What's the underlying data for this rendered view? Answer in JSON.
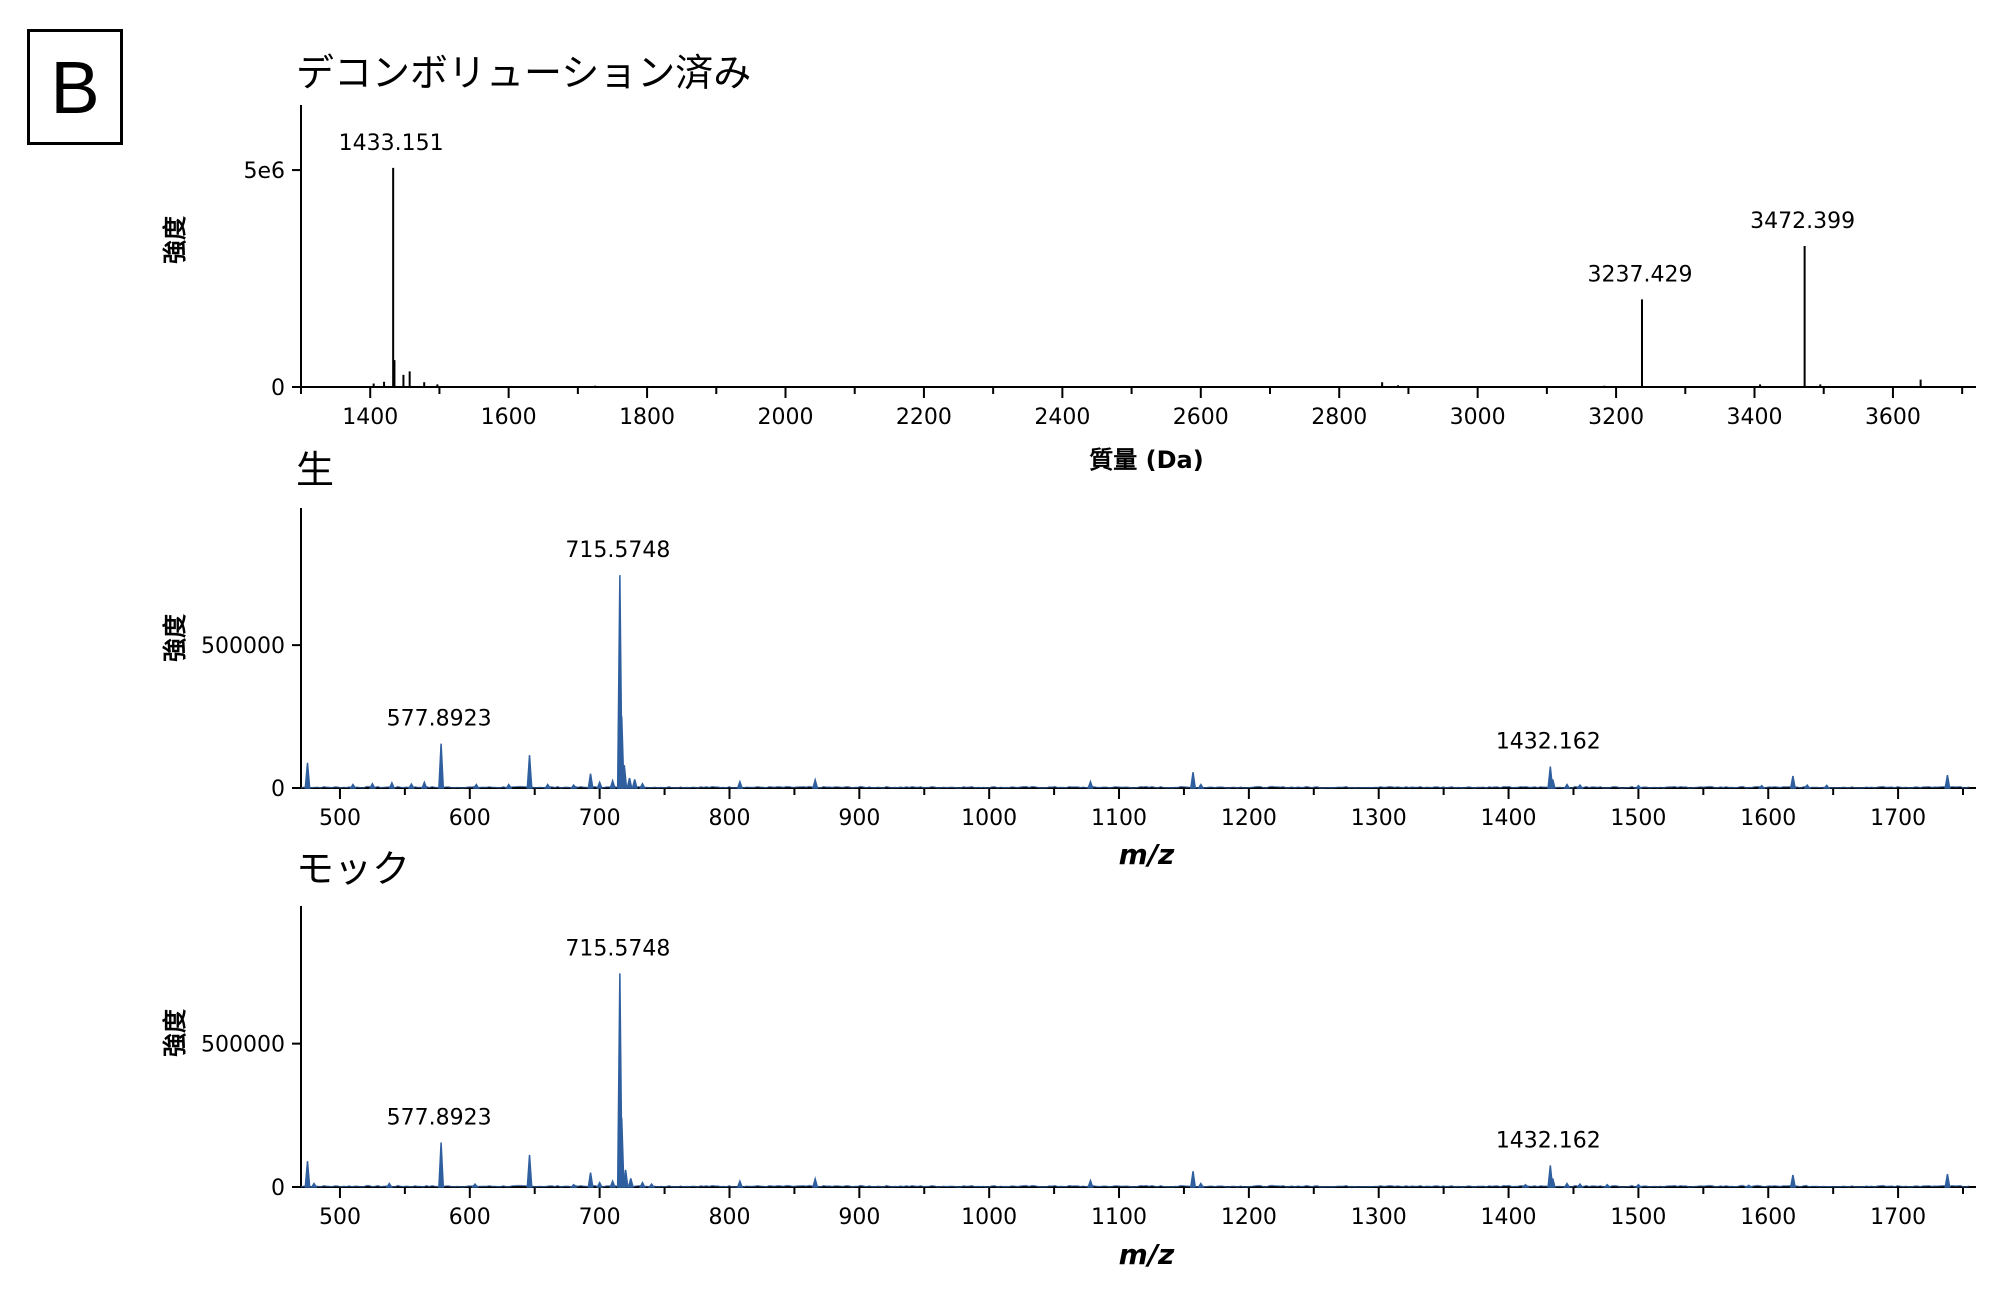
{
  "panel_label": "B",
  "colors": {
    "axis": "#000000",
    "deconv_peaks": "#000000",
    "spectrum": "#2f5f9e"
  },
  "chart_data": [
    {
      "id": "deconv",
      "type": "bar",
      "title": "デコンボリューション済み",
      "xlabel": "質量 (Da)",
      "ylabel": "強度",
      "xlim": [
        1300,
        3720
      ],
      "ylim": [
        0,
        6500000
      ],
      "xticks": [
        1400,
        1600,
        1800,
        2000,
        2200,
        2400,
        2600,
        2800,
        3000,
        3200,
        3400,
        3600
      ],
      "yticks": [
        {
          "value": 0,
          "label": "0"
        },
        {
          "value": 5000000,
          "label": "5e6"
        }
      ],
      "peaks": [
        {
          "x": 1405,
          "y": 80000
        },
        {
          "x": 1420,
          "y": 120000
        },
        {
          "x": 1433.151,
          "y": 5050000
        },
        {
          "x": 1435,
          "y": 620000
        },
        {
          "x": 1448,
          "y": 280000
        },
        {
          "x": 1457,
          "y": 360000
        },
        {
          "x": 1478,
          "y": 110000
        },
        {
          "x": 1497,
          "y": 60000
        },
        {
          "x": 1725,
          "y": 30000
        },
        {
          "x": 2862,
          "y": 110000
        },
        {
          "x": 2885,
          "y": 40000
        },
        {
          "x": 3183,
          "y": 30000
        },
        {
          "x": 3237.429,
          "y": 2020000
        },
        {
          "x": 3408,
          "y": 60000
        },
        {
          "x": 3472.399,
          "y": 3250000
        },
        {
          "x": 3495,
          "y": 60000
        },
        {
          "x": 3640,
          "y": 170000
        }
      ],
      "annotations": [
        {
          "x": 1433.151,
          "y": 5050000,
          "label": "1433.151"
        },
        {
          "x": 3237.429,
          "y": 2020000,
          "label": "3237.429"
        },
        {
          "x": 3472.399,
          "y": 3250000,
          "label": "3472.399"
        }
      ]
    },
    {
      "id": "raw",
      "type": "line",
      "title": "生",
      "xlabel": "m/z",
      "ylabel": "強度",
      "xlim": [
        470,
        1760
      ],
      "ylim": [
        0,
        980000
      ],
      "xticks": [
        500,
        600,
        700,
        800,
        900,
        1000,
        1100,
        1200,
        1300,
        1400,
        1500,
        1600,
        1700
      ],
      "yticks": [
        {
          "value": 0,
          "label": "0"
        },
        {
          "value": 500000,
          "label": "500000"
        }
      ],
      "peaks": [
        {
          "x": 475,
          "y": 88000
        },
        {
          "x": 510,
          "y": 12000
        },
        {
          "x": 525,
          "y": 15000
        },
        {
          "x": 540,
          "y": 18000
        },
        {
          "x": 555,
          "y": 14000
        },
        {
          "x": 565,
          "y": 20000
        },
        {
          "x": 577.8923,
          "y": 155000
        },
        {
          "x": 605,
          "y": 12000
        },
        {
          "x": 630,
          "y": 12000
        },
        {
          "x": 646,
          "y": 115000
        },
        {
          "x": 660,
          "y": 12000
        },
        {
          "x": 680,
          "y": 10000
        },
        {
          "x": 693,
          "y": 50000
        },
        {
          "x": 700,
          "y": 20000
        },
        {
          "x": 710,
          "y": 25000
        },
        {
          "x": 715.5748,
          "y": 745000
        },
        {
          "x": 717,
          "y": 250000
        },
        {
          "x": 719,
          "y": 80000
        },
        {
          "x": 723,
          "y": 35000
        },
        {
          "x": 727,
          "y": 30000
        },
        {
          "x": 733,
          "y": 15000
        },
        {
          "x": 808,
          "y": 22000
        },
        {
          "x": 866,
          "y": 28000
        },
        {
          "x": 1078,
          "y": 22000
        },
        {
          "x": 1157,
          "y": 55000
        },
        {
          "x": 1163,
          "y": 12000
        },
        {
          "x": 1432.162,
          "y": 75000
        },
        {
          "x": 1434,
          "y": 30000
        },
        {
          "x": 1445,
          "y": 12000
        },
        {
          "x": 1455,
          "y": 10000
        },
        {
          "x": 1500,
          "y": 8000
        },
        {
          "x": 1595,
          "y": 8000
        },
        {
          "x": 1619,
          "y": 42000
        },
        {
          "x": 1630,
          "y": 10000
        },
        {
          "x": 1645,
          "y": 9000
        },
        {
          "x": 1738,
          "y": 45000
        }
      ],
      "annotations": [
        {
          "x": 715.5748,
          "y": 745000,
          "label": "715.5748"
        },
        {
          "x": 577.8923,
          "y": 155000,
          "label": "577.8923"
        },
        {
          "x": 1432.162,
          "y": 75000,
          "label": "1432.162"
        }
      ]
    },
    {
      "id": "mock",
      "type": "line",
      "title": "モック",
      "xlabel": "m/z",
      "ylabel": "強度",
      "xlim": [
        470,
        1760
      ],
      "ylim": [
        0,
        980000
      ],
      "xticks": [
        500,
        600,
        700,
        800,
        900,
        1000,
        1100,
        1200,
        1300,
        1400,
        1500,
        1600,
        1700
      ],
      "yticks": [
        {
          "value": 0,
          "label": "0"
        },
        {
          "value": 500000,
          "label": "500000"
        }
      ],
      "peaks": [
        {
          "x": 475,
          "y": 90000
        },
        {
          "x": 480,
          "y": 12000
        },
        {
          "x": 538,
          "y": 12000
        },
        {
          "x": 577.8923,
          "y": 155000
        },
        {
          "x": 604,
          "y": 10000
        },
        {
          "x": 646,
          "y": 112000
        },
        {
          "x": 680,
          "y": 8000
        },
        {
          "x": 693,
          "y": 50000
        },
        {
          "x": 700,
          "y": 15000
        },
        {
          "x": 710,
          "y": 20000
        },
        {
          "x": 715.5748,
          "y": 745000
        },
        {
          "x": 717,
          "y": 240000
        },
        {
          "x": 720,
          "y": 60000
        },
        {
          "x": 724,
          "y": 30000
        },
        {
          "x": 733,
          "y": 15000
        },
        {
          "x": 740,
          "y": 10000
        },
        {
          "x": 808,
          "y": 20000
        },
        {
          "x": 866,
          "y": 28000
        },
        {
          "x": 1078,
          "y": 22000
        },
        {
          "x": 1157,
          "y": 55000
        },
        {
          "x": 1163,
          "y": 12000
        },
        {
          "x": 1413,
          "y": 8000
        },
        {
          "x": 1432.162,
          "y": 75000
        },
        {
          "x": 1434,
          "y": 30000
        },
        {
          "x": 1445,
          "y": 12000
        },
        {
          "x": 1455,
          "y": 10000
        },
        {
          "x": 1476,
          "y": 8000
        },
        {
          "x": 1500,
          "y": 8000
        },
        {
          "x": 1585,
          "y": 6000
        },
        {
          "x": 1619,
          "y": 42000
        },
        {
          "x": 1738,
          "y": 45000
        }
      ],
      "annotations": [
        {
          "x": 715.5748,
          "y": 745000,
          "label": "715.5748"
        },
        {
          "x": 577.8923,
          "y": 155000,
          "label": "577.8923"
        },
        {
          "x": 1432.162,
          "y": 75000,
          "label": "1432.162"
        }
      ]
    }
  ]
}
